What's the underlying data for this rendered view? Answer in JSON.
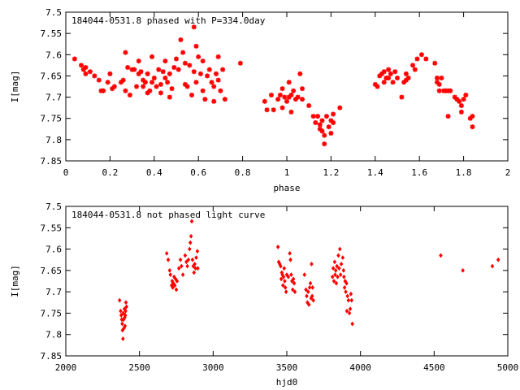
{
  "chart_data": [
    {
      "type": "scatter",
      "title": "184044-0531.8 phased with P=334.0day",
      "xlabel": "phase",
      "ylabel": "I[mag]",
      "xlim": [
        0,
        2
      ],
      "ylim": [
        7.5,
        7.85
      ],
      "y_inverted": true,
      "x_ticks": [
        "0",
        "0.2",
        "0.4",
        "0.6",
        "0.8",
        "1",
        "1.2",
        "1.4",
        "1.6",
        "1.8",
        "2"
      ],
      "x_tick_values": [
        0,
        0.2,
        0.4,
        0.6,
        0.8,
        1.0,
        1.2,
        1.4,
        1.6,
        1.8,
        2.0
      ],
      "y_ticks": [
        "7.5",
        "7.55",
        "7.6",
        "7.65",
        "7.7",
        "7.75",
        "7.8",
        "7.85"
      ],
      "y_tick_values": [
        7.5,
        7.55,
        7.6,
        7.65,
        7.7,
        7.75,
        7.8,
        7.85
      ],
      "grid": false,
      "marker_color": "#ff0000",
      "marker": "star",
      "points": [
        [
          0.04,
          7.61
        ],
        [
          0.07,
          7.625
        ],
        [
          0.08,
          7.635
        ],
        [
          0.09,
          7.63
        ],
        [
          0.09,
          7.645
        ],
        [
          0.11,
          7.64
        ],
        [
          0.13,
          7.65
        ],
        [
          0.15,
          7.66
        ],
        [
          0.16,
          7.685
        ],
        [
          0.17,
          7.685
        ],
        [
          0.19,
          7.665
        ],
        [
          0.2,
          7.645
        ],
        [
          0.21,
          7.68
        ],
        [
          0.22,
          7.675
        ],
        [
          0.25,
          7.665
        ],
        [
          0.26,
          7.66
        ],
        [
          0.27,
          7.595
        ],
        [
          0.27,
          7.685
        ],
        [
          0.28,
          7.63
        ],
        [
          0.29,
          7.695
        ],
        [
          0.3,
          7.635
        ],
        [
          0.31,
          7.635
        ],
        [
          0.32,
          7.675
        ],
        [
          0.33,
          7.645
        ],
        [
          0.33,
          7.615
        ],
        [
          0.34,
          7.64
        ],
        [
          0.35,
          7.66
        ],
        [
          0.35,
          7.675
        ],
        [
          0.36,
          7.665
        ],
        [
          0.37,
          7.69
        ],
        [
          0.37,
          7.645
        ],
        [
          0.38,
          7.685
        ],
        [
          0.39,
          7.605
        ],
        [
          0.39,
          7.665
        ],
        [
          0.4,
          7.655
        ],
        [
          0.41,
          7.675
        ],
        [
          0.42,
          7.635
        ],
        [
          0.43,
          7.69
        ],
        [
          0.43,
          7.67
        ],
        [
          0.44,
          7.64
        ],
        [
          0.45,
          7.655
        ],
        [
          0.45,
          7.615
        ],
        [
          0.46,
          7.665
        ],
        [
          0.47,
          7.7
        ],
        [
          0.47,
          7.645
        ],
        [
          0.48,
          7.68
        ],
        [
          0.49,
          7.63
        ],
        [
          0.5,
          7.61
        ],
        [
          0.51,
          7.635
        ],
        [
          0.52,
          7.565
        ],
        [
          0.53,
          7.595
        ],
        [
          0.54,
          7.67
        ],
        [
          0.54,
          7.62
        ],
        [
          0.55,
          7.675
        ],
        [
          0.56,
          7.625
        ],
        [
          0.57,
          7.695
        ],
        [
          0.58,
          7.535
        ],
        [
          0.58,
          7.64
        ],
        [
          0.59,
          7.58
        ],
        [
          0.59,
          7.665
        ],
        [
          0.6,
          7.605
        ],
        [
          0.61,
          7.645
        ],
        [
          0.62,
          7.615
        ],
        [
          0.62,
          7.685
        ],
        [
          0.63,
          7.705
        ],
        [
          0.64,
          7.65
        ],
        [
          0.65,
          7.635
        ],
        [
          0.66,
          7.665
        ],
        [
          0.67,
          7.71
        ],
        [
          0.67,
          7.675
        ],
        [
          0.68,
          7.645
        ],
        [
          0.69,
          7.605
        ],
        [
          0.69,
          7.66
        ],
        [
          0.7,
          7.685
        ],
        [
          0.71,
          7.635
        ],
        [
          0.72,
          7.705
        ],
        [
          0.79,
          7.62
        ],
        [
          0.9,
          7.71
        ],
        [
          0.91,
          7.73
        ],
        [
          0.93,
          7.695
        ],
        [
          0.94,
          7.73
        ],
        [
          0.96,
          7.705
        ],
        [
          0.97,
          7.695
        ],
        [
          0.98,
          7.68
        ],
        [
          0.98,
          7.725
        ],
        [
          0.99,
          7.7
        ],
        [
          1.0,
          7.71
        ],
        [
          1.01,
          7.7
        ],
        [
          1.01,
          7.665
        ],
        [
          1.02,
          7.735
        ],
        [
          1.02,
          7.695
        ],
        [
          1.03,
          7.685
        ],
        [
          1.04,
          7.705
        ],
        [
          1.05,
          7.7
        ],
        [
          1.06,
          7.645
        ],
        [
          1.07,
          7.68
        ],
        [
          1.07,
          7.705
        ],
        [
          1.1,
          7.72
        ],
        [
          1.12,
          7.745
        ],
        [
          1.13,
          7.76
        ],
        [
          1.14,
          7.745
        ],
        [
          1.15,
          7.765
        ],
        [
          1.15,
          7.775
        ],
        [
          1.16,
          7.78
        ],
        [
          1.16,
          7.755
        ],
        [
          1.17,
          7.79
        ],
        [
          1.17,
          7.81
        ],
        [
          1.18,
          7.745
        ],
        [
          1.19,
          7.77
        ],
        [
          1.2,
          7.785
        ],
        [
          1.2,
          7.755
        ],
        [
          1.21,
          7.74
        ],
        [
          1.21,
          7.76
        ],
        [
          1.24,
          7.725
        ],
        [
          1.4,
          7.67
        ],
        [
          1.41,
          7.675
        ],
        [
          1.42,
          7.65
        ],
        [
          1.43,
          7.645
        ],
        [
          1.44,
          7.665
        ],
        [
          1.44,
          7.64
        ],
        [
          1.45,
          7.655
        ],
        [
          1.46,
          7.655
        ],
        [
          1.46,
          7.635
        ],
        [
          1.47,
          7.645
        ],
        [
          1.48,
          7.665
        ],
        [
          1.49,
          7.64
        ],
        [
          1.5,
          7.655
        ],
        [
          1.52,
          7.7
        ],
        [
          1.53,
          7.665
        ],
        [
          1.54,
          7.645
        ],
        [
          1.54,
          7.66
        ],
        [
          1.55,
          7.655
        ],
        [
          1.57,
          7.625
        ],
        [
          1.58,
          7.635
        ],
        [
          1.59,
          7.61
        ],
        [
          1.61,
          7.6
        ],
        [
          1.63,
          7.61
        ],
        [
          1.67,
          7.62
        ],
        [
          1.68,
          7.655
        ],
        [
          1.68,
          7.665
        ],
        [
          1.69,
          7.67
        ],
        [
          1.69,
          7.685
        ],
        [
          1.7,
          7.655
        ],
        [
          1.71,
          7.685
        ],
        [
          1.72,
          7.685
        ],
        [
          1.73,
          7.685
        ],
        [
          1.73,
          7.745
        ],
        [
          1.74,
          7.685
        ],
        [
          1.76,
          7.7
        ],
        [
          1.77,
          7.705
        ],
        [
          1.78,
          7.71
        ],
        [
          1.79,
          7.735
        ],
        [
          1.79,
          7.72
        ],
        [
          1.8,
          7.705
        ],
        [
          1.81,
          7.695
        ],
        [
          1.83,
          7.75
        ],
        [
          1.84,
          7.745
        ],
        [
          1.84,
          7.77
        ]
      ]
    },
    {
      "type": "scatter",
      "title": "184044-0531.8 not phased light curve",
      "xlabel": "hjd0",
      "ylabel": "I[mag]",
      "xlim": [
        2000,
        5000
      ],
      "ylim": [
        7.5,
        7.85
      ],
      "y_inverted": true,
      "x_ticks": [
        "2000",
        "2500",
        "3000",
        "3500",
        "4000",
        "4500",
        "5000"
      ],
      "x_tick_values": [
        2000,
        2500,
        3000,
        3500,
        4000,
        4500,
        5000
      ],
      "y_ticks": [
        "7.5",
        "7.55",
        "7.6",
        "7.65",
        "7.7",
        "7.75",
        "7.8",
        "7.85"
      ],
      "y_tick_values": [
        7.5,
        7.55,
        7.6,
        7.65,
        7.7,
        7.75,
        7.8,
        7.85
      ],
      "grid": false,
      "marker_color": "#ff0000",
      "marker": "diamond",
      "points": [
        [
          2365,
          7.72
        ],
        [
          2372,
          7.745
        ],
        [
          2376,
          7.755
        ],
        [
          2380,
          7.765
        ],
        [
          2383,
          7.775
        ],
        [
          2385,
          7.79
        ],
        [
          2388,
          7.81
        ],
        [
          2390,
          7.75
        ],
        [
          2392,
          7.765
        ],
        [
          2395,
          7.785
        ],
        [
          2398,
          7.74
        ],
        [
          2400,
          7.76
        ],
        [
          2402,
          7.78
        ],
        [
          2404,
          7.755
        ],
        [
          2406,
          7.745
        ],
        [
          2408,
          7.725
        ],
        [
          2412,
          7.735
        ],
        [
          2685,
          7.61
        ],
        [
          2695,
          7.625
        ],
        [
          2705,
          7.65
        ],
        [
          2710,
          7.66
        ],
        [
          2718,
          7.685
        ],
        [
          2722,
          7.675
        ],
        [
          2726,
          7.69
        ],
        [
          2730,
          7.68
        ],
        [
          2735,
          7.665
        ],
        [
          2740,
          7.685
        ],
        [
          2745,
          7.67
        ],
        [
          2750,
          7.695
        ],
        [
          2755,
          7.675
        ],
        [
          2768,
          7.645
        ],
        [
          2778,
          7.625
        ],
        [
          2785,
          7.64
        ],
        [
          2795,
          7.66
        ],
        [
          2810,
          7.615
        ],
        [
          2818,
          7.63
        ],
        [
          2825,
          7.64
        ],
        [
          2832,
          7.625
        ],
        [
          2840,
          7.6
        ],
        [
          2845,
          7.585
        ],
        [
          2850,
          7.57
        ],
        [
          2855,
          7.535
        ],
        [
          2860,
          7.625
        ],
        [
          2865,
          7.64
        ],
        [
          2870,
          7.655
        ],
        [
          2875,
          7.635
        ],
        [
          2880,
          7.645
        ],
        [
          2885,
          7.62
        ],
        [
          2893,
          7.605
        ],
        [
          2896,
          7.645
        ],
        [
          3440,
          7.595
        ],
        [
          3445,
          7.63
        ],
        [
          3452,
          7.635
        ],
        [
          3458,
          7.64
        ],
        [
          3462,
          7.67
        ],
        [
          3466,
          7.655
        ],
        [
          3470,
          7.66
        ],
        [
          3474,
          7.685
        ],
        [
          3478,
          7.665
        ],
        [
          3482,
          7.645
        ],
        [
          3486,
          7.675
        ],
        [
          3490,
          7.69
        ],
        [
          3495,
          7.7
        ],
        [
          3500,
          7.66
        ],
        [
          3510,
          7.665
        ],
        [
          3520,
          7.61
        ],
        [
          3525,
          7.625
        ],
        [
          3530,
          7.66
        ],
        [
          3535,
          7.675
        ],
        [
          3540,
          7.695
        ],
        [
          3545,
          7.67
        ],
        [
          3550,
          7.68
        ],
        [
          3555,
          7.7
        ],
        [
          3620,
          7.66
        ],
        [
          3630,
          7.695
        ],
        [
          3635,
          7.71
        ],
        [
          3640,
          7.725
        ],
        [
          3645,
          7.7
        ],
        [
          3650,
          7.73
        ],
        [
          3655,
          7.69
        ],
        [
          3660,
          7.68
        ],
        [
          3665,
          7.715
        ],
        [
          3668,
          7.635
        ],
        [
          3672,
          7.71
        ],
        [
          3675,
          7.69
        ],
        [
          3680,
          7.72
        ],
        [
          3810,
          7.665
        ],
        [
          3815,
          7.645
        ],
        [
          3820,
          7.675
        ],
        [
          3825,
          7.63
        ],
        [
          3828,
          7.66
        ],
        [
          3832,
          7.65
        ],
        [
          3836,
          7.68
        ],
        [
          3840,
          7.64
        ],
        [
          3845,
          7.665
        ],
        [
          3850,
          7.615
        ],
        [
          3855,
          7.645
        ],
        [
          3860,
          7.6
        ],
        [
          3865,
          7.66
        ],
        [
          3870,
          7.635
        ],
        [
          3880,
          7.62
        ],
        [
          3885,
          7.65
        ],
        [
          3888,
          7.665
        ],
        [
          3892,
          7.69
        ],
        [
          3896,
          7.675
        ],
        [
          3900,
          7.7
        ],
        [
          3905,
          7.68
        ],
        [
          3908,
          7.745
        ],
        [
          3912,
          7.71
        ],
        [
          3918,
          7.72
        ],
        [
          3925,
          7.75
        ],
        [
          3930,
          7.74
        ],
        [
          3935,
          7.705
        ],
        [
          3940,
          7.72
        ],
        [
          3945,
          7.775
        ],
        [
          4545,
          7.615
        ],
        [
          4695,
          7.65
        ],
        [
          4895,
          7.64
        ],
        [
          4935,
          7.625
        ]
      ]
    }
  ]
}
